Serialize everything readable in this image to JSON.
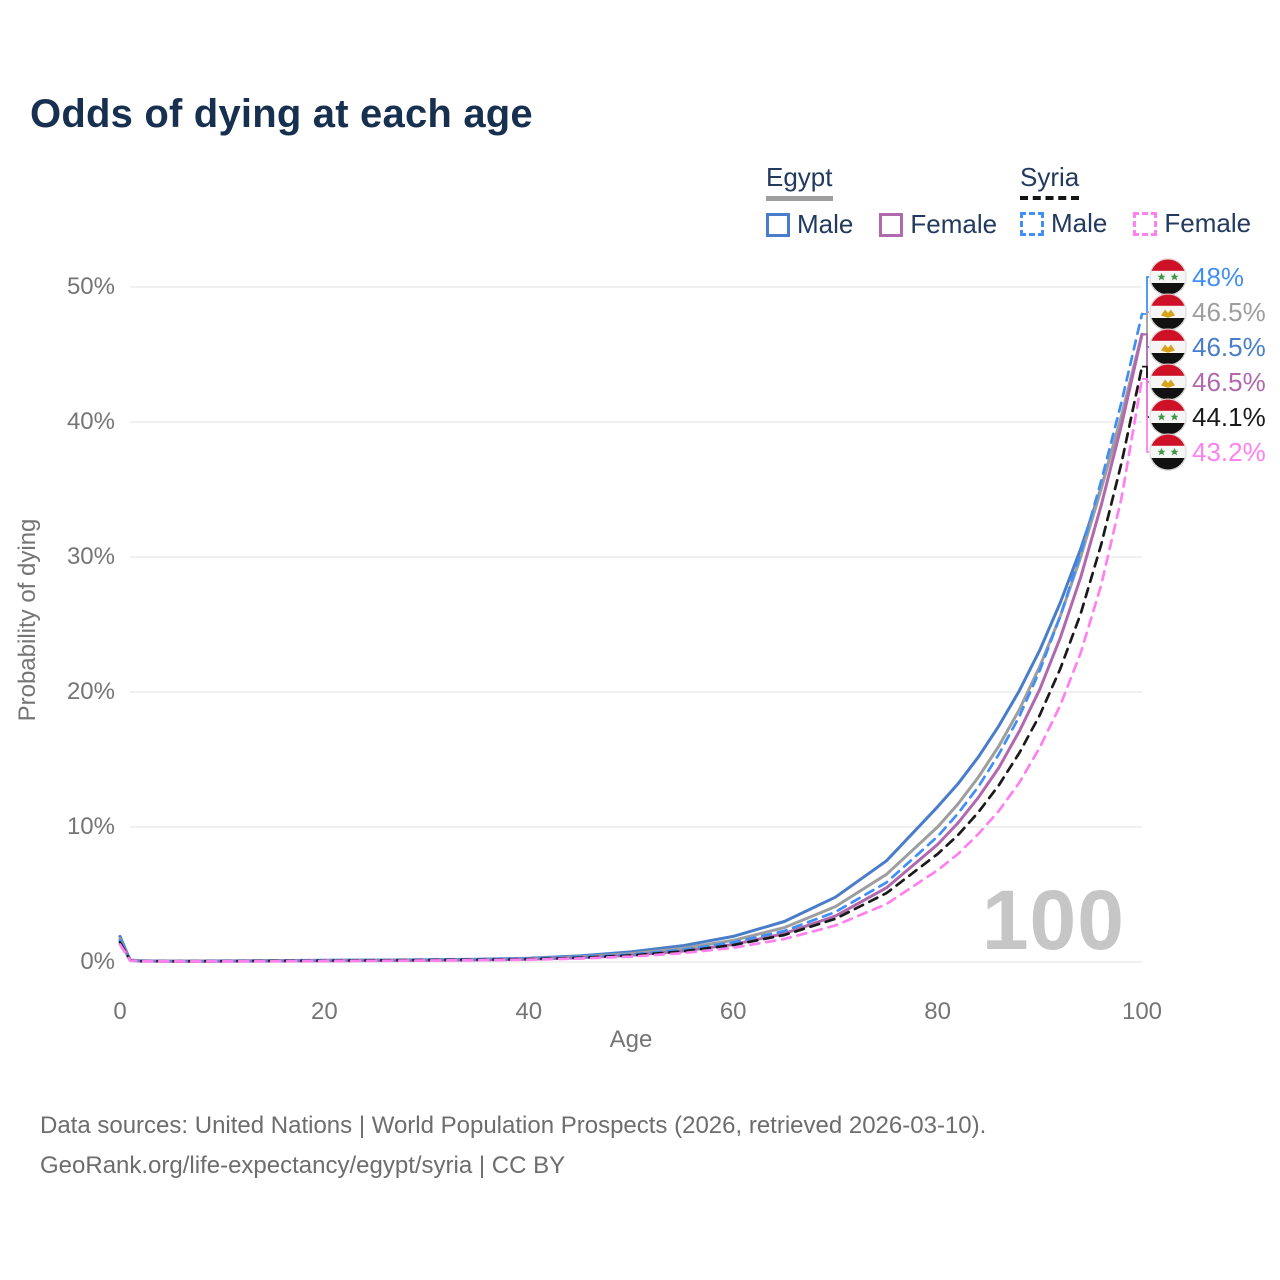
{
  "title": "Odds of dying at each age",
  "legend": {
    "egypt": {
      "name": "Egypt",
      "male": "Male",
      "female": "Female"
    },
    "syria": {
      "name": "Syria",
      "male": "Male",
      "female": "Female"
    }
  },
  "axes": {
    "y_title": "Probability of dying",
    "x_title": "Age",
    "y_ticks": [
      "0%",
      "10%",
      "20%",
      "30%",
      "40%",
      "50%"
    ],
    "x_ticks": [
      "0",
      "20",
      "40",
      "60",
      "80",
      "100"
    ]
  },
  "age_counter": "100",
  "footer": {
    "line1": "Data sources: United Nations | World Population Prospects (2026, retrieved 2026-03-10).",
    "line2": "GeoRank.org/life-expectancy/egypt/syria | CC BY"
  },
  "colors": {
    "title_text": "#17304f",
    "legend_text": "#223a5e",
    "axis_text": "#757575",
    "grid": "#ececec",
    "watermark": "#c6c6c6",
    "flag_red": "#ce1126",
    "flag_white": "#f5f5f5",
    "flag_black": "#111111",
    "syria_star_green": "#3d9547",
    "egypt_eagle_gold": "#d9a21b"
  },
  "chart_data": {
    "type": "line",
    "title": "Odds of dying at each age",
    "xlabel": "Age",
    "ylabel": "Probability of dying",
    "xlim": [
      0,
      100
    ],
    "ylim": [
      0,
      50
    ],
    "grid": true,
    "legend_position": "top-right",
    "x": [
      0,
      1,
      2,
      5,
      10,
      15,
      20,
      25,
      30,
      35,
      40,
      45,
      50,
      55,
      60,
      65,
      70,
      75,
      80,
      82,
      84,
      86,
      88,
      90,
      92,
      94,
      96,
      98,
      100
    ],
    "series": [
      {
        "id": "egypt_male",
        "name": "Egypt Male",
        "country": "egypt",
        "sex": "male",
        "style": "solid",
        "color": "#4a7dc9",
        "end_label": "46.5%",
        "values": [
          1.9,
          0.14,
          0.09,
          0.07,
          0.08,
          0.1,
          0.13,
          0.15,
          0.17,
          0.21,
          0.28,
          0.45,
          0.75,
          1.2,
          1.9,
          3.0,
          4.8,
          7.5,
          11.5,
          13.2,
          15.2,
          17.5,
          20.1,
          23.1,
          26.6,
          30.6,
          35.1,
          40.4,
          46.5
        ]
      },
      {
        "id": "egypt_both",
        "name": "Egypt",
        "country": "egypt",
        "sex": "both",
        "style": "solid",
        "color": "#9e9e9e",
        "end_label": "46.5%",
        "values": [
          1.7,
          0.13,
          0.08,
          0.06,
          0.07,
          0.09,
          0.11,
          0.13,
          0.15,
          0.18,
          0.24,
          0.38,
          0.62,
          1.0,
          1.6,
          2.55,
          4.1,
          6.5,
          10.0,
          11.7,
          13.7,
          16.0,
          18.7,
          21.9,
          25.6,
          30.0,
          35.0,
          40.5,
          46.5
        ]
      },
      {
        "id": "egypt_female",
        "name": "Egypt Female",
        "country": "egypt",
        "sex": "female",
        "style": "solid",
        "color": "#b169ad",
        "end_label": "46.5%",
        "values": [
          1.55,
          0.12,
          0.07,
          0.05,
          0.06,
          0.07,
          0.08,
          0.1,
          0.12,
          0.15,
          0.2,
          0.32,
          0.5,
          0.8,
          1.3,
          2.1,
          3.4,
          5.5,
          8.7,
          10.3,
          12.2,
          14.4,
          17.1,
          20.2,
          24.0,
          28.5,
          33.8,
          39.8,
          46.5
        ]
      },
      {
        "id": "syria_male",
        "name": "Syria Male",
        "country": "syria",
        "sex": "male",
        "style": "dashed",
        "color": "#418ff5",
        "end_label": "48%",
        "values": [
          1.6,
          0.12,
          0.08,
          0.06,
          0.07,
          0.09,
          0.12,
          0.14,
          0.16,
          0.19,
          0.24,
          0.36,
          0.55,
          0.9,
          1.45,
          2.3,
          3.7,
          5.9,
          9.3,
          11.0,
          13.0,
          15.4,
          18.2,
          21.6,
          25.6,
          30.3,
          35.6,
          41.5,
          48.0
        ]
      },
      {
        "id": "syria_both",
        "name": "Syria",
        "country": "syria",
        "sex": "both",
        "style": "dashed",
        "color": "#1a1a1a",
        "end_label": "44.1%",
        "values": [
          1.45,
          0.11,
          0.07,
          0.05,
          0.06,
          0.08,
          0.1,
          0.12,
          0.14,
          0.16,
          0.21,
          0.31,
          0.48,
          0.78,
          1.25,
          2.0,
          3.2,
          5.1,
          8.0,
          9.4,
          11.1,
          13.1,
          15.5,
          18.3,
          21.7,
          25.8,
          30.9,
          37.0,
          44.1
        ]
      },
      {
        "id": "syria_female",
        "name": "Syria Female",
        "country": "syria",
        "sex": "female",
        "style": "dashed",
        "color": "#ff80ef",
        "end_label": "43.2%",
        "values": [
          1.3,
          0.1,
          0.06,
          0.045,
          0.05,
          0.06,
          0.08,
          0.09,
          0.11,
          0.13,
          0.17,
          0.26,
          0.4,
          0.65,
          1.05,
          1.7,
          2.7,
          4.3,
          6.8,
          8.0,
          9.5,
          11.2,
          13.3,
          15.9,
          19.0,
          22.9,
          27.9,
          34.4,
          43.2
        ]
      }
    ],
    "end_labels_order": [
      "syria_male",
      "egypt_both",
      "egypt_male",
      "egypt_female",
      "syria_both",
      "syria_female"
    ]
  }
}
